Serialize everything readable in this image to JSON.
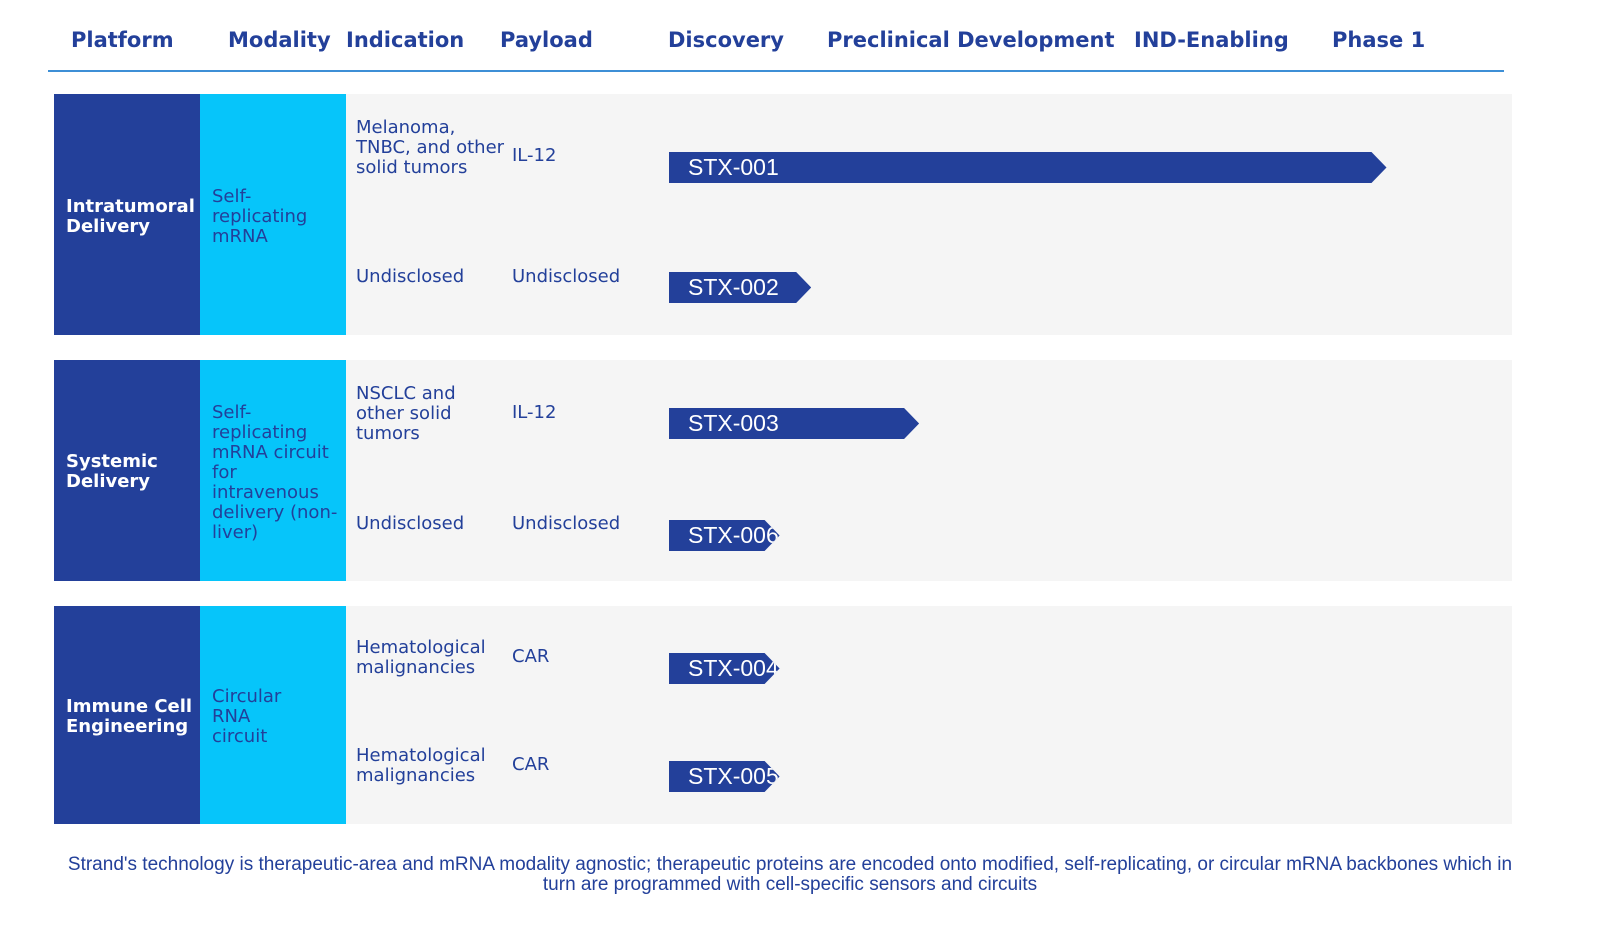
{
  "headers": {
    "platform": "Platform",
    "modality": "Modality",
    "indication": "Indication",
    "payload": "Payload",
    "discovery": "Discovery",
    "preclinical": "Preclinical Development",
    "ind": "IND-Enabling",
    "phase1": "Phase 1"
  },
  "chart_data": {
    "type": "table",
    "stages": [
      "Discovery",
      "Preclinical Development",
      "IND-Enabling",
      "Phase 1"
    ],
    "groups": [
      {
        "platform": "Intratumoral Delivery",
        "modality": "Self-replicating mRNA",
        "programs": [
          {
            "name": "STX-001",
            "indication": "Melanoma, TNBC, and other solid tumors",
            "payload": "IL-12",
            "progress": 3.25
          },
          {
            "name": "STX-002",
            "indication": "Undisclosed",
            "payload": "Undisclosed",
            "progress": 0.9
          }
        ]
      },
      {
        "platform": "Systemic Delivery",
        "modality": "Self-replicating mRNA circuit for intravenous delivery (non-liver)",
        "programs": [
          {
            "name": "STX-003",
            "indication": "NSCLC and other solid tumors",
            "payload": "IL-12",
            "progress": 1.3
          },
          {
            "name": "STX-006",
            "indication": "Undisclosed",
            "payload": "Undisclosed",
            "progress": 0.7
          }
        ]
      },
      {
        "platform": "Immune Cell Engineering",
        "modality": "Circular RNA circuit",
        "programs": [
          {
            "name": "STX-004",
            "indication": "Hematological malignancies",
            "payload": "CAR",
            "progress": 0.7
          },
          {
            "name": "STX-005",
            "indication": "Hematological malignancies",
            "payload": "CAR",
            "progress": 0.7
          }
        ]
      }
    ]
  },
  "footnote": "Strand's technology is therapeutic-area and mRNA modality agnostic; therapeutic proteins are encoded onto modified, self-replicating, or circular mRNA backbones which in turn are programmed with cell-specific sensors and circuits",
  "colors": {
    "platform": "#23409a",
    "modality": "#06c5fa",
    "bar": "#23409a",
    "band": "#f5f5f5",
    "header_line": "#3d8fd6"
  }
}
